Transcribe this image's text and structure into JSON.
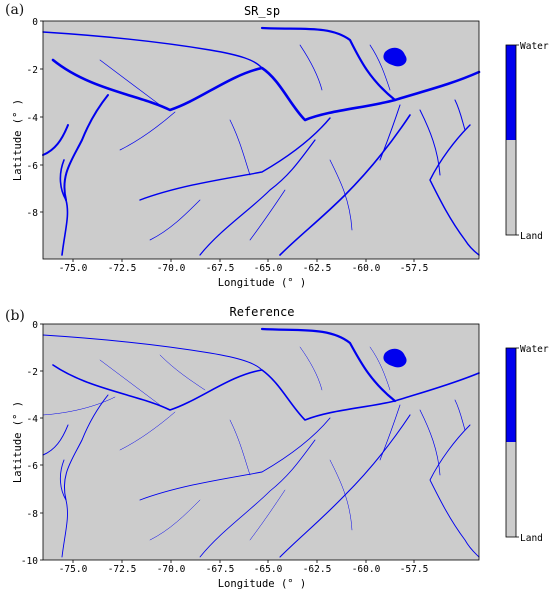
{
  "panels": [
    {
      "label": "(a)",
      "title": "SR_sp",
      "xlabel": "Longitude (° )",
      "ylabel": "Latitude (° )",
      "xticks": [
        "-75.0",
        "-72.5",
        "-70.0",
        "-67.5",
        "-65.0",
        "-62.5",
        "-60.0",
        "-57.5"
      ],
      "yticks": [
        "0",
        "-2",
        "-4",
        "-6",
        "-8"
      ],
      "legend": {
        "top": "Water",
        "bottom": "Land"
      }
    },
    {
      "label": "(b)",
      "title": "Reference",
      "xlabel": "Longitude (° )",
      "ylabel": "Latitude (° )",
      "xticks": [
        "-75.0",
        "-72.5",
        "-70.0",
        "-67.5",
        "-65.0",
        "-62.5",
        "-60.0",
        "-57.5"
      ],
      "yticks": [
        "0",
        "-2",
        "-4",
        "-6",
        "-8",
        "-10"
      ],
      "legend": {
        "top": "Water",
        "bottom": "Land"
      }
    }
  ],
  "colors": {
    "water": "#0000ee",
    "land": "#cccccc",
    "axis": "#000000"
  }
}
